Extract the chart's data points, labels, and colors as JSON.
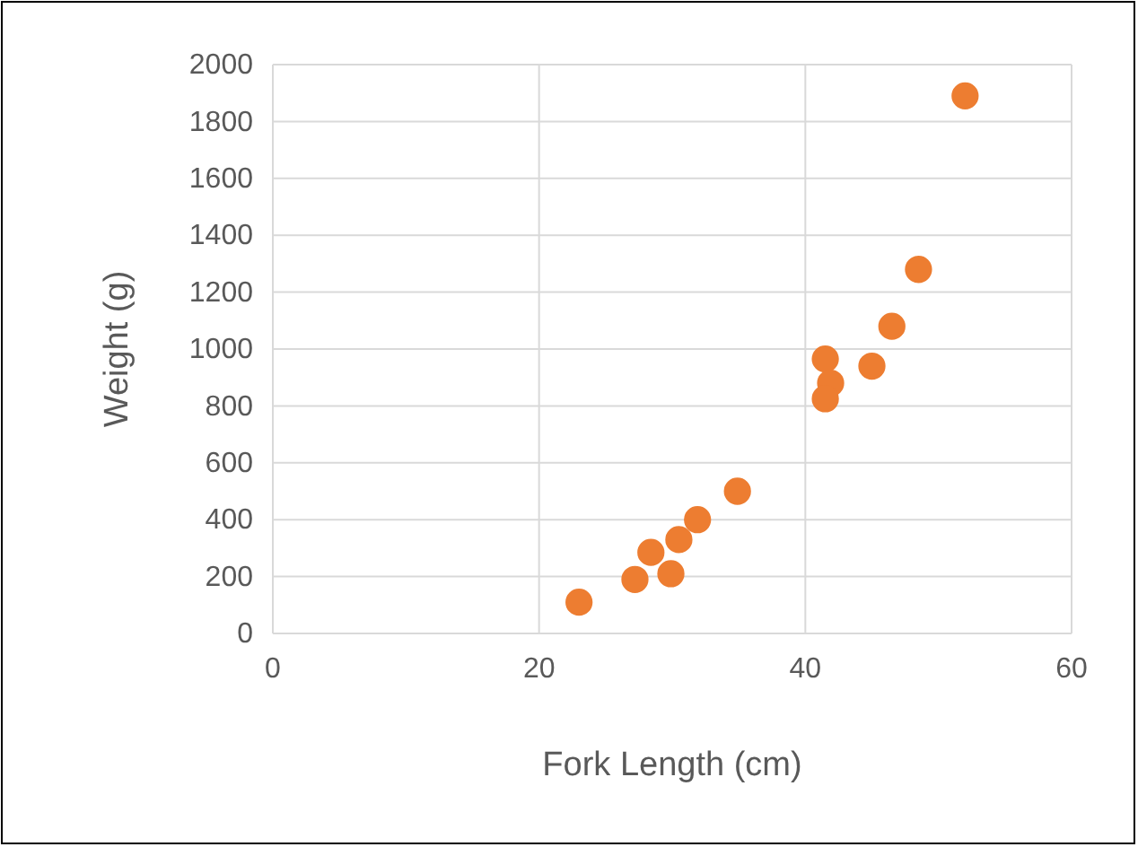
{
  "chart_data": {
    "type": "scatter",
    "xlabel": "Fork Length (cm)",
    "ylabel": "Weight (g)",
    "x": [
      23,
      27.2,
      28.4,
      29.9,
      30.5,
      31.9,
      34.9,
      41.5,
      41.9,
      41.5,
      45,
      46.5,
      48.5,
      52
    ],
    "series": [
      {
        "color": "#ed7d31",
        "values": [
          110,
          190,
          285,
          210,
          330,
          400,
          500,
          965,
          880,
          825,
          940,
          1080,
          1280,
          1890
        ]
      }
    ],
    "xlim": [
      0,
      60
    ],
    "xticks": [
      0,
      20,
      40,
      60
    ],
    "ylim": [
      0,
      2000
    ],
    "yticks": [
      0,
      200,
      400,
      600,
      800,
      1000,
      1200,
      1400,
      1600,
      1800,
      2000
    ],
    "grid": true,
    "marker": "circle"
  }
}
